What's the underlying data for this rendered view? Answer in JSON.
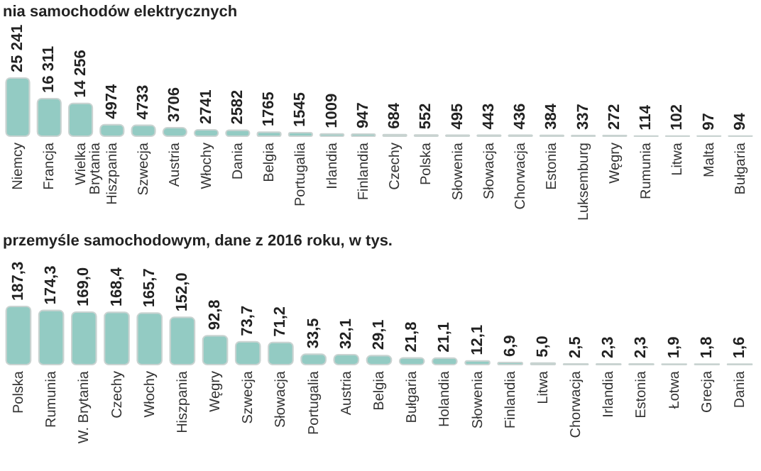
{
  "chart_data": [
    {
      "type": "bar",
      "title": "nia samochodów elektrycznych",
      "color": "#93cbc3",
      "categories": [
        "Niemcy",
        "Francja",
        "Wielka Brytania",
        "Hiszpania",
        "Szwecja",
        "Austria",
        "Włochy",
        "Dania",
        "Belgia",
        "Portugalia",
        "Irlandia",
        "Finlandia",
        "Czechy",
        "Polska",
        "Słowenia",
        "Słowacja",
        "Chorwacja",
        "Estonia",
        "Luksemburg",
        "Węgry",
        "Rumunia",
        "Litwa",
        "Malta",
        "Bułgaria"
      ],
      "values": [
        25241,
        16311,
        14256,
        4974,
        4733,
        3706,
        2741,
        2582,
        1765,
        1545,
        1009,
        947,
        684,
        552,
        495,
        443,
        436,
        384,
        337,
        272,
        114,
        102,
        97,
        94
      ],
      "value_labels": [
        "25 241",
        "16 311",
        "14 256",
        "4974",
        "4733",
        "3706",
        "2741",
        "2582",
        "1765",
        "1545",
        "1009",
        "947",
        "684",
        "552",
        "495",
        "443",
        "436",
        "384",
        "337",
        "272",
        "114",
        "102",
        "97",
        "94"
      ]
    },
    {
      "type": "bar",
      "title": "przemyśle samochodowym, dane z 2016 roku, w tys.",
      "color": "#93cbc3",
      "categories": [
        "Polska",
        "Rumunia",
        "W. Brytania",
        "Czechy",
        "Włochy",
        "Hiszpania",
        "Węgry",
        "Szwecja",
        "Słowacja",
        "Portugalia",
        "Austria",
        "Belgia",
        "Bułgaria",
        "Holandia",
        "Słowenia",
        "Finlandia",
        "Litwa",
        "Chorwacja",
        "Irlandia",
        "Estonia",
        "Łotwa",
        "Grecja",
        "Dania"
      ],
      "values": [
        187.3,
        174.3,
        169.0,
        168.4,
        165.7,
        152.0,
        92.8,
        73.7,
        71.2,
        33.5,
        32.1,
        29.1,
        21.8,
        21.1,
        12.1,
        6.9,
        5.0,
        2.5,
        2.3,
        2.3,
        1.9,
        1.8,
        1.6
      ],
      "value_labels": [
        "187,3",
        "174,3",
        "169,0",
        "168,4",
        "165,7",
        "152,0",
        "92,8",
        "73,7",
        "71,2",
        "33,5",
        "32,1",
        "29,1",
        "21,8",
        "21,1",
        "12,1",
        "6,9",
        "5,0",
        "2,5",
        "2,3",
        "2,3",
        "1,9",
        "1,8",
        "1,6"
      ]
    }
  ]
}
